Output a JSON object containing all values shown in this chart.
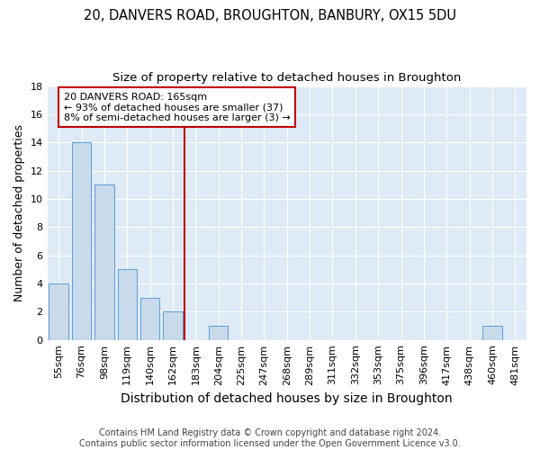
{
  "title1": "20, DANVERS ROAD, BROUGHTON, BANBURY, OX15 5DU",
  "title2": "Size of property relative to detached houses in Broughton",
  "xlabel": "Distribution of detached houses by size in Broughton",
  "ylabel": "Number of detached properties",
  "bar_labels": [
    "55sqm",
    "76sqm",
    "98sqm",
    "119sqm",
    "140sqm",
    "162sqm",
    "183sqm",
    "204sqm",
    "225sqm",
    "247sqm",
    "268sqm",
    "289sqm",
    "311sqm",
    "332sqm",
    "353sqm",
    "375sqm",
    "396sqm",
    "417sqm",
    "438sqm",
    "460sqm",
    "481sqm"
  ],
  "bar_values": [
    4,
    14,
    11,
    5,
    3,
    2,
    0,
    1,
    0,
    0,
    0,
    0,
    0,
    0,
    0,
    0,
    0,
    0,
    0,
    1,
    0
  ],
  "bar_color": "#c9daea",
  "bar_edgecolor": "#5b9bd5",
  "vline_x": 5.5,
  "vline_color": "#c00000",
  "annotation_text": "20 DANVERS ROAD: 165sqm\n← 93% of detached houses are smaller (37)\n8% of semi-detached houses are larger (3) →",
  "annotation_box_edgecolor": "#c00000",
  "ylim": [
    0,
    18
  ],
  "yticks": [
    0,
    2,
    4,
    6,
    8,
    10,
    12,
    14,
    16,
    18
  ],
  "footer": "Contains HM Land Registry data © Crown copyright and database right 2024.\nContains public sector information licensed under the Open Government Licence v3.0.",
  "bg_color": "#deeaf5",
  "grid_color": "#ffffff",
  "fig_bg": "#ffffff",
  "title1_fontsize": 10.5,
  "title2_fontsize": 9.5,
  "xlabel_fontsize": 10,
  "ylabel_fontsize": 9,
  "tick_fontsize": 8,
  "footer_fontsize": 7,
  "annotation_fontsize": 8
}
